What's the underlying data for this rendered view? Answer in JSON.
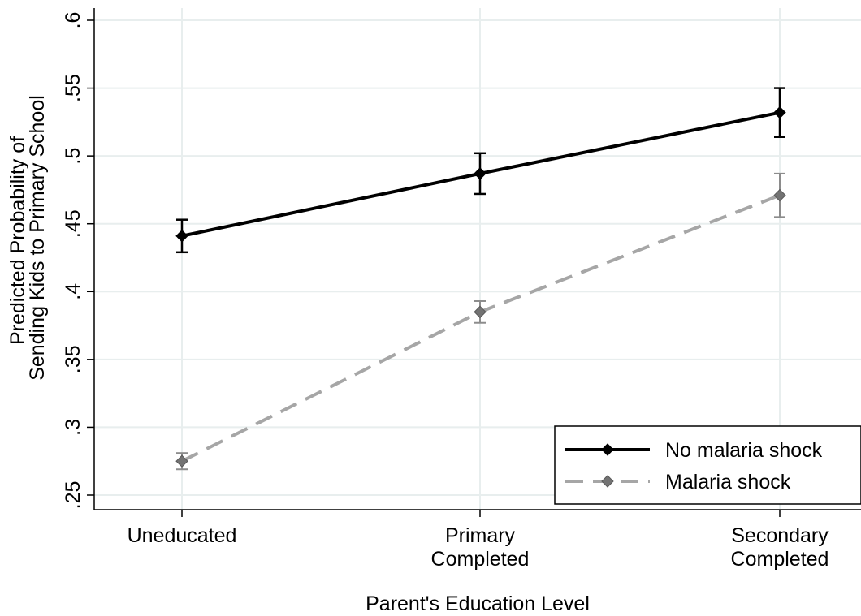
{
  "chart_data": {
    "type": "line",
    "xlabel": "Parent's Education Level",
    "ylabel_lines": [
      "Predicted Probability of",
      "Sending Kids to Primary School"
    ],
    "categories": [
      [
        "Uneducated"
      ],
      [
        "Primary",
        "Completed"
      ],
      [
        "Secondary",
        "Completed"
      ]
    ],
    "ylim": [
      0.25,
      0.6
    ],
    "yticks": [
      0.25,
      0.3,
      0.35,
      0.4,
      0.45,
      0.5,
      0.55,
      0.6
    ],
    "ytick_labels": [
      ".25",
      ".3",
      ".35",
      ".4",
      ".45",
      ".5",
      ".55",
      ".6"
    ],
    "grid": true,
    "legend_position": "bottom-right",
    "series": [
      {
        "name": "No malaria shock",
        "values": [
          0.441,
          0.487,
          0.532
        ],
        "ci_low": [
          0.429,
          0.472,
          0.514
        ],
        "ci_high": [
          0.453,
          0.502,
          0.55
        ],
        "color": "#000000",
        "marker_color": "#000000",
        "dash": false
      },
      {
        "name": "Malaria shock",
        "values": [
          0.275,
          0.385,
          0.471
        ],
        "ci_low": [
          0.269,
          0.377,
          0.455
        ],
        "ci_high": [
          0.281,
          0.393,
          0.487
        ],
        "color": "#a6a6a6",
        "marker_color": "#737373",
        "dash": true
      }
    ]
  }
}
